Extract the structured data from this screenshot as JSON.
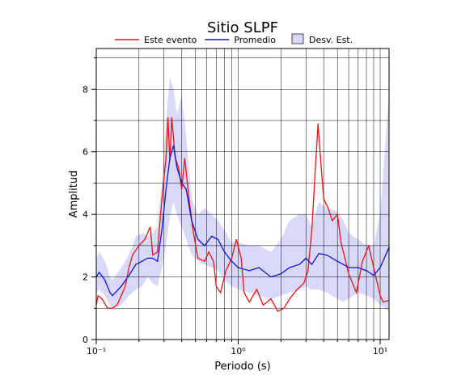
{
  "chart_data": {
    "type": "line",
    "title": "Sitio SLPF",
    "x_label": "Periodo (s)",
    "y_label": "Amplitud",
    "log_x": true,
    "grid": true,
    "xlim": [
      0.1,
      11.55
    ],
    "ylim": [
      0,
      9.3
    ],
    "xticks": [
      {
        "value": 0.1,
        "label": "10⁻¹"
      },
      {
        "value": 1,
        "label": "10⁰"
      },
      {
        "value": 10,
        "label": "10¹"
      }
    ],
    "xminor": [
      0.2,
      0.3,
      0.4,
      0.5,
      0.6,
      0.7,
      0.8,
      0.9,
      2,
      3,
      4,
      5,
      6,
      7,
      8,
      9
    ],
    "yticks": [
      0,
      2,
      4,
      6,
      8
    ],
    "yminor": [
      1,
      3,
      5,
      7,
      9
    ],
    "band": {
      "name": "Desv. Est.",
      "color": "#d8d8f8",
      "x": [
        0.1,
        0.105,
        0.115,
        0.125,
        0.13,
        0.15,
        0.17,
        0.19,
        0.21,
        0.23,
        0.25,
        0.27,
        0.29,
        0.31,
        0.33,
        0.35,
        0.37,
        0.4,
        0.43,
        0.47,
        0.52,
        0.58,
        0.65,
        0.72,
        0.8,
        0.9,
        1.0,
        1.2,
        1.4,
        1.7,
        2.0,
        2.3,
        2.7,
        3.0,
        3.3,
        3.7,
        4.2,
        5,
        5.5,
        6,
        7,
        8,
        9,
        10,
        11.55
      ],
      "upper": [
        2.6,
        2.8,
        2.5,
        2.0,
        1.9,
        2.3,
        2.7,
        3.3,
        3.4,
        3.3,
        3.4,
        3.6,
        5.0,
        7.0,
        8.4,
        8.0,
        7.2,
        7.8,
        6.5,
        4.5,
        4.0,
        4.2,
        4.0,
        3.8,
        3.5,
        3.1,
        3.1,
        3.0,
        3.0,
        2.8,
        3.2,
        3.8,
        4.0,
        4.0,
        3.6,
        4.4,
        4.2,
        4.1,
        3.8,
        3.4,
        3.2,
        3.0,
        3.0,
        4.0,
        7.9
      ],
      "lower": [
        1.5,
        1.6,
        1.4,
        1.1,
        1.0,
        1.1,
        1.4,
        1.6,
        1.7,
        2.0,
        1.8,
        1.7,
        2.3,
        3.0,
        3.9,
        4.4,
        4.0,
        3.6,
        3.2,
        2.7,
        2.5,
        2.4,
        2.3,
        2.2,
        1.9,
        1.7,
        1.6,
        1.5,
        1.4,
        1.3,
        1.4,
        1.5,
        1.6,
        1.7,
        1.6,
        1.6,
        1.5,
        1.3,
        1.2,
        1.3,
        1.5,
        1.4,
        1.3,
        1.1,
        0.9
      ]
    },
    "series": [
      {
        "name": "Este evento",
        "color": "#ee1111",
        "x": [
          0.1,
          0.103,
          0.11,
          0.12,
          0.13,
          0.14,
          0.15,
          0.16,
          0.17,
          0.18,
          0.2,
          0.22,
          0.24,
          0.25,
          0.27,
          0.29,
          0.31,
          0.32,
          0.33,
          0.34,
          0.36,
          0.38,
          0.4,
          0.42,
          0.45,
          0.48,
          0.52,
          0.58,
          0.62,
          0.67,
          0.7,
          0.75,
          0.82,
          0.9,
          0.97,
          1.05,
          1.1,
          1.2,
          1.35,
          1.5,
          1.7,
          1.9,
          2.1,
          2.3,
          2.6,
          2.9,
          3.1,
          3.3,
          3.5,
          3.65,
          3.8,
          4.0,
          4.3,
          4.6,
          5.0,
          5.3,
          6.0,
          6.8,
          7.5,
          8.3,
          9.0,
          10,
          10.5,
          11.55
        ],
        "values": [
          1.1,
          1.4,
          1.3,
          1.0,
          1.0,
          1.1,
          1.4,
          1.7,
          2.3,
          2.7,
          3.0,
          3.2,
          3.6,
          2.7,
          2.8,
          4.5,
          5.8,
          7.1,
          5.7,
          7.1,
          5.8,
          5.5,
          4.8,
          5.8,
          4.5,
          3.5,
          2.6,
          2.5,
          2.8,
          2.5,
          1.7,
          1.5,
          2.2,
          2.6,
          3.2,
          2.6,
          1.5,
          1.2,
          1.6,
          1.1,
          1.3,
          0.9,
          1.0,
          1.3,
          1.6,
          1.8,
          2.2,
          3.5,
          5.5,
          6.9,
          5.8,
          4.5,
          4.2,
          3.8,
          4.0,
          3.1,
          2.1,
          1.5,
          2.5,
          3.0,
          2.3,
          1.4,
          1.2,
          1.25
        ]
      },
      {
        "name": "Promedio",
        "color": "#1111dd",
        "x": [
          0.1,
          0.105,
          0.115,
          0.125,
          0.13,
          0.15,
          0.17,
          0.19,
          0.21,
          0.23,
          0.25,
          0.27,
          0.29,
          0.31,
          0.33,
          0.35,
          0.37,
          0.4,
          0.43,
          0.47,
          0.52,
          0.58,
          0.65,
          0.72,
          0.8,
          0.9,
          1.0,
          1.2,
          1.4,
          1.7,
          2.0,
          2.3,
          2.7,
          3.0,
          3.3,
          3.7,
          4.2,
          5,
          5.5,
          6,
          7,
          8,
          9,
          10,
          11.55
        ],
        "values": [
          2.0,
          2.15,
          1.9,
          1.5,
          1.4,
          1.7,
          2.05,
          2.4,
          2.5,
          2.6,
          2.6,
          2.5,
          3.5,
          4.8,
          5.8,
          6.2,
          5.5,
          5.0,
          4.8,
          3.8,
          3.2,
          3.0,
          3.3,
          3.2,
          2.8,
          2.5,
          2.3,
          2.2,
          2.3,
          2.0,
          2.1,
          2.3,
          2.4,
          2.6,
          2.4,
          2.75,
          2.7,
          2.5,
          2.4,
          2.3,
          2.3,
          2.2,
          2.05,
          2.3,
          2.95
        ]
      }
    ]
  }
}
